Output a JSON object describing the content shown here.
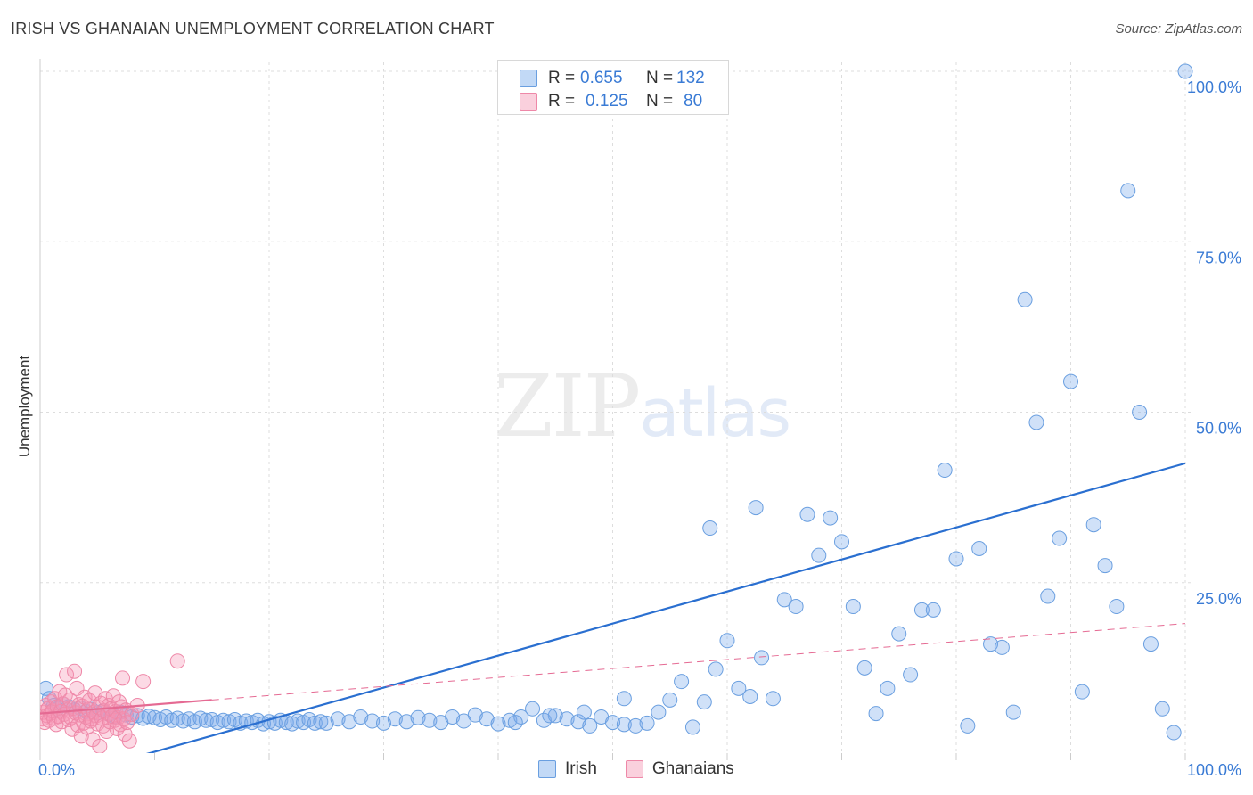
{
  "title": "IRISH VS GHANAIAN UNEMPLOYMENT CORRELATION CHART",
  "source": "Source: ZipAtlas.com",
  "watermark": {
    "part1": "ZIP",
    "part2": "atlas"
  },
  "legend": {
    "rows": [
      {
        "r_label": "R =",
        "r_value": "0.655",
        "n_label": "N =",
        "n_value": "132"
      },
      {
        "r_label": "R =",
        "r_value": "0.125",
        "n_label": "N =",
        "n_value": "80"
      }
    ]
  },
  "bottom_legend": {
    "irish": "Irish",
    "ghanaians": "Ghanaians"
  },
  "colors": {
    "irish_fill": "rgba(120,170,235,0.35)",
    "irish_stroke": "#6a9fe0",
    "irish_line": "#2a6fd0",
    "ghana_fill": "rgba(245,150,180,0.35)",
    "ghana_stroke": "#ee88a8",
    "ghana_line": "#e56a93",
    "axis_text": "#3a7bd5",
    "grid": "#dddddd"
  },
  "chart_data": {
    "type": "scatter",
    "title": "IRISH VS GHANAIAN UNEMPLOYMENT CORRELATION CHART",
    "xlabel": "",
    "ylabel": "Unemployment",
    "xlim": [
      0,
      100
    ],
    "ylim": [
      0,
      100
    ],
    "x_tick_labels": [
      {
        "value": 0,
        "label": "0.0%"
      },
      {
        "value": 100,
        "label": "100.0%"
      }
    ],
    "y_tick_labels": [
      {
        "value": 25,
        "label": "25.0%"
      },
      {
        "value": 50,
        "label": "50.0%"
      },
      {
        "value": 75,
        "label": "75.0%"
      },
      {
        "value": 100,
        "label": "100.0%"
      }
    ],
    "series": [
      {
        "name": "Irish",
        "points": [
          [
            0.5,
            9.5
          ],
          [
            0.8,
            8
          ],
          [
            1.2,
            7
          ],
          [
            1.5,
            6.5
          ],
          [
            2,
            7.2
          ],
          [
            2.5,
            6.8
          ],
          [
            3,
            6.3
          ],
          [
            3.5,
            6.6
          ],
          [
            4,
            6.1
          ],
          [
            4.5,
            6.4
          ],
          [
            5,
            5.9
          ],
          [
            5.5,
            6.2
          ],
          [
            6,
            5.7
          ],
          [
            6.5,
            5.4
          ],
          [
            7,
            6.0
          ],
          [
            7.5,
            5.6
          ],
          [
            8,
            5.3
          ],
          [
            8.5,
            5.5
          ],
          [
            9,
            5.1
          ],
          [
            9.5,
            5.4
          ],
          [
            10,
            5.2
          ],
          [
            10.5,
            4.9
          ],
          [
            11,
            5.3
          ],
          [
            11.5,
            4.8
          ],
          [
            12,
            5.1
          ],
          [
            12.5,
            4.7
          ],
          [
            13,
            5.0
          ],
          [
            13.5,
            4.6
          ],
          [
            14,
            5.1
          ],
          [
            14.5,
            4.8
          ],
          [
            15,
            4.9
          ],
          [
            15.5,
            4.5
          ],
          [
            16,
            4.8
          ],
          [
            16.5,
            4.6
          ],
          [
            17,
            4.9
          ],
          [
            17.5,
            4.4
          ],
          [
            18,
            4.7
          ],
          [
            18.5,
            4.5
          ],
          [
            19,
            4.8
          ],
          [
            19.5,
            4.3
          ],
          [
            20,
            4.6
          ],
          [
            20.5,
            4.4
          ],
          [
            21,
            4.8
          ],
          [
            21.5,
            4.5
          ],
          [
            22,
            4.3
          ],
          [
            22.5,
            4.7
          ],
          [
            23,
            4.5
          ],
          [
            23.5,
            4.9
          ],
          [
            24,
            4.4
          ],
          [
            24.5,
            4.6
          ],
          [
            25,
            4.4
          ],
          [
            26,
            5.0
          ],
          [
            27,
            4.6
          ],
          [
            28,
            5.3
          ],
          [
            29,
            4.7
          ],
          [
            30,
            4.4
          ],
          [
            31,
            5.0
          ],
          [
            32,
            4.6
          ],
          [
            33,
            5.2
          ],
          [
            34,
            4.8
          ],
          [
            35,
            4.5
          ],
          [
            36,
            5.3
          ],
          [
            37,
            4.7
          ],
          [
            38,
            5.6
          ],
          [
            39,
            5.0
          ],
          [
            40,
            4.3
          ],
          [
            41,
            4.8
          ],
          [
            42,
            5.3
          ],
          [
            43,
            6.5
          ],
          [
            44,
            4.8
          ],
          [
            45,
            5.5
          ],
          [
            46,
            5.0
          ],
          [
            47,
            4.6
          ],
          [
            48,
            4.0
          ],
          [
            49,
            5.3
          ],
          [
            50,
            4.5
          ],
          [
            51,
            4.2
          ],
          [
            52,
            4.0
          ],
          [
            53,
            4.4
          ],
          [
            54,
            6.0
          ],
          [
            55,
            7.8
          ],
          [
            56,
            10.5
          ],
          [
            57,
            3.8
          ],
          [
            58,
            7.5
          ],
          [
            59,
            12.3
          ],
          [
            60,
            16.5
          ],
          [
            61,
            9.5
          ],
          [
            62,
            8.3
          ],
          [
            63,
            14.0
          ],
          [
            64,
            8.0
          ],
          [
            65,
            22.5
          ],
          [
            66,
            21.5
          ],
          [
            67,
            35.0
          ],
          [
            68,
            29.0
          ],
          [
            69,
            34.5
          ],
          [
            70,
            31.0
          ],
          [
            71,
            21.5
          ],
          [
            72,
            12.5
          ],
          [
            73,
            5.8
          ],
          [
            74,
            9.5
          ],
          [
            75,
            17.5
          ],
          [
            76,
            11.5
          ],
          [
            77,
            21.0
          ],
          [
            78,
            21.0
          ],
          [
            79,
            41.5
          ],
          [
            80,
            28.5
          ],
          [
            81,
            4.0
          ],
          [
            82,
            30.0
          ],
          [
            83,
            16.0
          ],
          [
            84,
            15.5
          ],
          [
            85,
            6.0
          ],
          [
            86,
            66.5
          ],
          [
            87,
            48.5
          ],
          [
            88,
            23.0
          ],
          [
            89,
            31.5
          ],
          [
            90,
            54.5
          ],
          [
            91,
            9.0
          ],
          [
            92,
            33.5
          ],
          [
            93,
            27.5
          ],
          [
            94,
            21.5
          ],
          [
            95,
            82.5
          ],
          [
            96,
            50.0
          ],
          [
            97,
            16.0
          ],
          [
            98,
            6.5
          ],
          [
            99,
            3.0
          ],
          [
            100,
            100
          ],
          [
            62.5,
            36
          ],
          [
            58.5,
            33
          ],
          [
            51,
            8
          ],
          [
            47.5,
            6
          ],
          [
            44.5,
            5.5
          ],
          [
            41.5,
            4.5
          ]
        ]
      },
      {
        "name": "Ghanaians",
        "points": [
          [
            0.2,
            5
          ],
          [
            0.3,
            6
          ],
          [
            0.4,
            4.5
          ],
          [
            0.5,
            7
          ],
          [
            0.6,
            5.5
          ],
          [
            0.7,
            6.5
          ],
          [
            0.8,
            4.8
          ],
          [
            0.9,
            5.8
          ],
          [
            1.0,
            7.5
          ],
          [
            1.1,
            6.2
          ],
          [
            1.2,
            5.1
          ],
          [
            1.3,
            8
          ],
          [
            1.4,
            4.2
          ],
          [
            1.5,
            6.8
          ],
          [
            1.6,
            5.4
          ],
          [
            1.7,
            9
          ],
          [
            1.8,
            6.1
          ],
          [
            1.9,
            4.6
          ],
          [
            2.0,
            7.2
          ],
          [
            2.1,
            5.7
          ],
          [
            2.2,
            8.5
          ],
          [
            2.3,
            11.5
          ],
          [
            2.4,
            6.3
          ],
          [
            2.5,
            4.9
          ],
          [
            2.6,
            7.8
          ],
          [
            2.7,
            5.2
          ],
          [
            2.8,
            3.5
          ],
          [
            2.9,
            6.6
          ],
          [
            3.0,
            12
          ],
          [
            3.1,
            5.9
          ],
          [
            3.2,
            9.5
          ],
          [
            3.3,
            4.1
          ],
          [
            3.4,
            7.1
          ],
          [
            3.5,
            5.6
          ],
          [
            3.6,
            2.5
          ],
          [
            3.7,
            6.9
          ],
          [
            3.8,
            4.4
          ],
          [
            3.9,
            8.2
          ],
          [
            4.0,
            5.3
          ],
          [
            4.1,
            3.8
          ],
          [
            4.2,
            6.4
          ],
          [
            4.3,
            7.7
          ],
          [
            4.4,
            4.7
          ],
          [
            4.5,
            5.0
          ],
          [
            4.6,
            2
          ],
          [
            4.7,
            6.0
          ],
          [
            4.8,
            8.8
          ],
          [
            4.9,
            5.5
          ],
          [
            5.0,
            4.3
          ],
          [
            5.1,
            6.7
          ],
          [
            5.2,
            1
          ],
          [
            5.3,
            7.3
          ],
          [
            5.4,
            5.1
          ],
          [
            5.5,
            4.0
          ],
          [
            5.6,
            6.2
          ],
          [
            5.7,
            8.0
          ],
          [
            5.8,
            3.2
          ],
          [
            5.9,
            5.8
          ],
          [
            6.0,
            7.0
          ],
          [
            6.1,
            4.6
          ],
          [
            6.2,
            6.5
          ],
          [
            6.3,
            5.4
          ],
          [
            6.4,
            8.4
          ],
          [
            6.5,
            4.8
          ],
          [
            6.6,
            6.1
          ],
          [
            6.7,
            3.6
          ],
          [
            6.8,
            5.2
          ],
          [
            6.9,
            7.5
          ],
          [
            7.0,
            4.2
          ],
          [
            7.1,
            6.8
          ],
          [
            7.2,
            11
          ],
          [
            7.3,
            5.0
          ],
          [
            7.4,
            2.8
          ],
          [
            7.5,
            6.3
          ],
          [
            7.6,
            4.5
          ],
          [
            7.8,
            1.8
          ],
          [
            8.0,
            5.7
          ],
          [
            9,
            10.5
          ],
          [
            12,
            13.5
          ],
          [
            8.5,
            7.0
          ]
        ]
      }
    ],
    "trend_lines": [
      {
        "series": "Irish",
        "x": [
          0,
          100
        ],
        "y": [
          -4.5,
          42.5
        ],
        "style": "solid"
      },
      {
        "series": "Ghanaians",
        "x": [
          0,
          15
        ],
        "y": [
          5.8,
          7.8
        ],
        "style": "solid"
      },
      {
        "series": "Ghanaians",
        "x": [
          15,
          100
        ],
        "y": [
          7.8,
          19.0
        ],
        "style": "dashed"
      }
    ],
    "grid": true
  }
}
